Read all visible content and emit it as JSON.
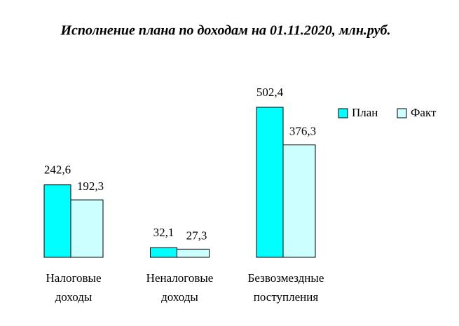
{
  "chart_data": {
    "type": "bar",
    "title": "Исполнение плана по доходам на 01.11.2020, млн.руб.",
    "categories": [
      "Налоговые доходы",
      "Неналоговые доходы",
      "Безвозмездные поступления"
    ],
    "series": [
      {
        "name": "План",
        "color": "#00ffff",
        "values": [
          242.6,
          32.1,
          502.4
        ],
        "value_labels": [
          "242,6",
          "32,1",
          "502,4"
        ]
      },
      {
        "name": "Факт",
        "color": "#ccffff",
        "values": [
          192.3,
          27.3,
          376.3
        ],
        "value_labels": [
          "192,3",
          "27,3",
          "376,3"
        ]
      }
    ],
    "legend": "top-right"
  }
}
